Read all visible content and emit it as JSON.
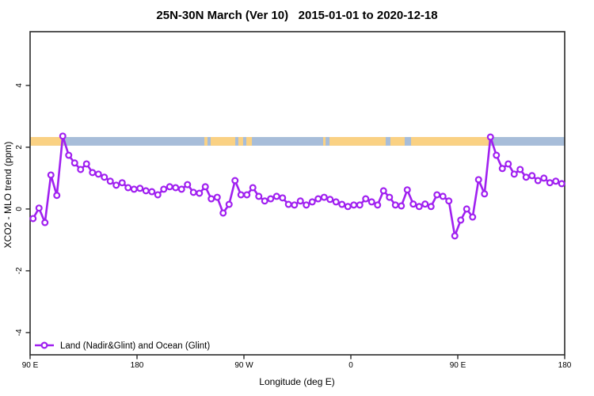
{
  "title": "25N-30N March (Ver 10)   2015-01-01 to 2020-12-18",
  "legend": {
    "label": "Land (Nadir&Glint) and Ocean (Glint)"
  },
  "colors": {
    "series": "#A020F0",
    "marker_fill": "#ffffff",
    "ocean_band": "#a7bdd9",
    "land_band": "#fad183",
    "axis": "#2b2b2b"
  },
  "axes": {
    "x": {
      "label": "Longitude (deg E)"
    },
    "y": {
      "label": "XCO2 - MLO trend (ppm)"
    }
  },
  "chart_data": {
    "type": "line",
    "title": "25N-30N March (Ver 10)   2015-01-01 to 2020-12-18",
    "xlabel": "Longitude (deg E)",
    "ylabel": "XCO2 - MLO trend (ppm)",
    "xlim": [
      90,
      540
    ],
    "ylim": [
      -4.72,
      5.74
    ],
    "x_ticks": [
      {
        "lon": 90,
        "label": "90 E"
      },
      {
        "lon": 180,
        "label": "180"
      },
      {
        "lon": 270,
        "label": "90 W"
      },
      {
        "lon": 360,
        "label": "0"
      },
      {
        "lon": 450,
        "label": "90 E"
      },
      {
        "lon": 540,
        "label": "180"
      }
    ],
    "y_ticks": [
      4,
      2,
      0,
      -2,
      -4
    ],
    "band": {
      "description": "land(orange)/ocean(blue) strip",
      "y_range_ppm": [
        2.05,
        2.33
      ],
      "base": "ocean",
      "land_segments_lon": [
        [
          90,
          118
        ],
        [
          236.7,
          239.3
        ],
        [
          242,
          262.7
        ],
        [
          265.3,
          269.3
        ],
        [
          272,
          276.7
        ],
        [
          336.7,
          338.7
        ],
        [
          342,
          389.3
        ],
        [
          393.3,
          405.3
        ],
        [
          410.7,
          476.7
        ]
      ]
    },
    "series": [
      {
        "name": "Land (Nadir&Glint) and Ocean (Glint)",
        "x": [
          92.5,
          97.5,
          102.5,
          107.5,
          112.5,
          117.5,
          122.5,
          127.5,
          132.5,
          137.5,
          142.5,
          147.5,
          152.5,
          157.5,
          162.5,
          167.5,
          172.5,
          177.5,
          182.5,
          187.5,
          192.5,
          197.5,
          202.5,
          207.5,
          212.5,
          217.5,
          222.5,
          227.5,
          232.5,
          237.5,
          242.5,
          247.5,
          252.5,
          257.5,
          262.5,
          267.5,
          272.5,
          277.5,
          282.5,
          287.5,
          292.5,
          297.5,
          302.5,
          307.5,
          312.5,
          317.5,
          322.5,
          327.5,
          332.5,
          337.5,
          342.5,
          347.5,
          352.5,
          357.5,
          362.5,
          367.5,
          372.5,
          377.5,
          382.5,
          387.5,
          392.5,
          397.5,
          402.5,
          407.5,
          412.5,
          417.5,
          422.5,
          427.5,
          432.5,
          437.5,
          442.5,
          447.5,
          452.5,
          457.5,
          462.5,
          467.5,
          472.5,
          477.5,
          482.5,
          487.5,
          492.5,
          497.5,
          502.5,
          507.5,
          512.5,
          517.5,
          522.5,
          527.5,
          532.5,
          537.5
        ],
        "y": [
          -0.31,
          0.03,
          -0.44,
          1.1,
          0.44,
          2.36,
          1.74,
          1.49,
          1.28,
          1.46,
          1.18,
          1.13,
          1.03,
          0.9,
          0.77,
          0.85,
          0.69,
          0.64,
          0.67,
          0.59,
          0.56,
          0.46,
          0.64,
          0.72,
          0.69,
          0.64,
          0.79,
          0.54,
          0.51,
          0.72,
          0.33,
          0.38,
          -0.13,
          0.15,
          0.92,
          0.46,
          0.46,
          0.69,
          0.41,
          0.26,
          0.33,
          0.41,
          0.36,
          0.15,
          0.13,
          0.26,
          0.13,
          0.23,
          0.33,
          0.38,
          0.31,
          0.23,
          0.15,
          0.08,
          0.13,
          0.13,
          0.33,
          0.23,
          0.13,
          0.59,
          0.38,
          0.13,
          0.1,
          0.62,
          0.16,
          0.08,
          0.16,
          0.08,
          0.46,
          0.41,
          0.26,
          -0.87,
          -0.36,
          0.0,
          -0.26,
          0.95,
          0.49,
          2.33,
          1.74,
          1.31,
          1.46,
          1.13,
          1.28,
          1.03,
          1.08,
          0.92,
          1.0,
          0.85,
          0.9,
          0.82
        ]
      }
    ]
  }
}
